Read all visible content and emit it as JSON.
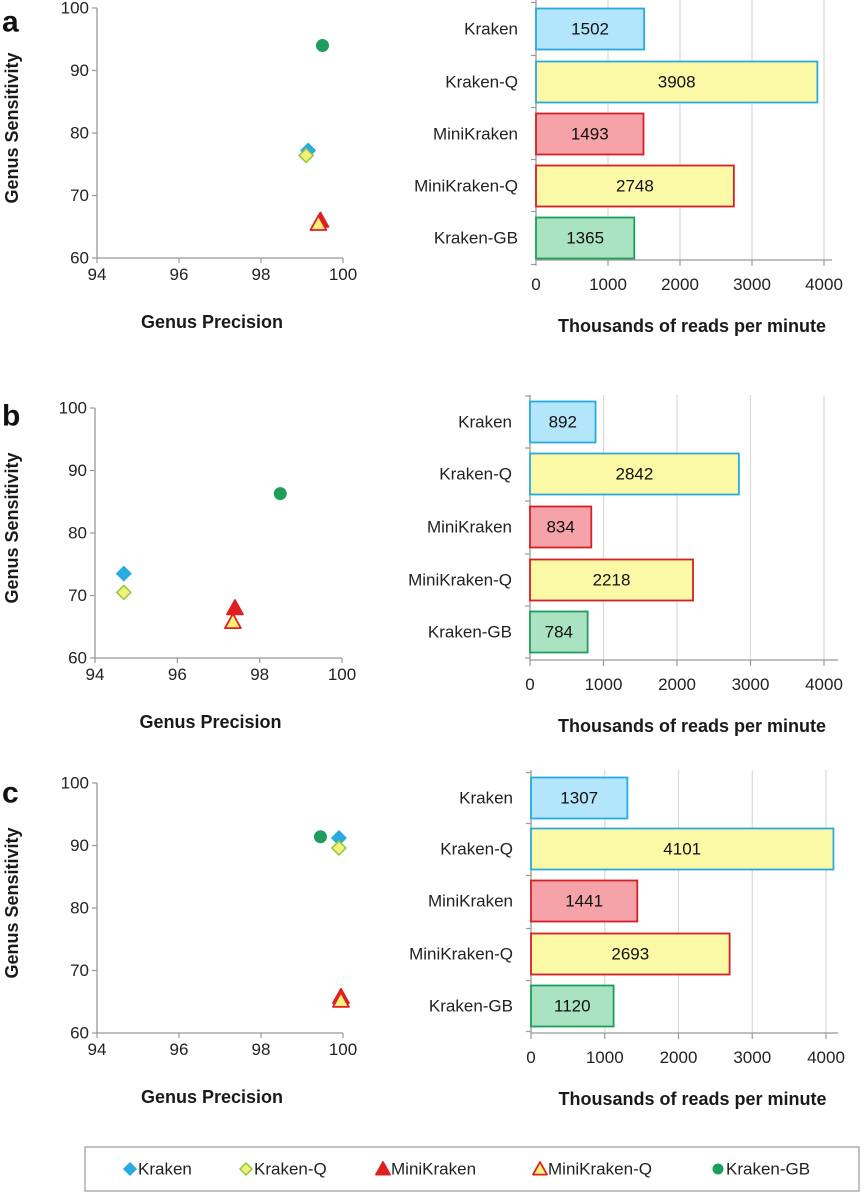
{
  "panels": [
    {
      "letter": "a",
      "scatter": {
        "xlabel": "Genus Precision",
        "ylabel": "Genus Sensitivity",
        "xlim": [
          94,
          100
        ],
        "ylim": [
          60,
          100
        ],
        "xticks": [
          94,
          96,
          98,
          100
        ],
        "yticks": [
          60,
          70,
          80,
          90,
          100
        ]
      },
      "bar": {
        "xlabel": "Thousands  of reads per minute",
        "xlim": [
          0,
          4000
        ],
        "xticks": [
          0,
          1000,
          2000,
          3000,
          4000
        ]
      }
    },
    {
      "letter": "b",
      "scatter": {
        "xlabel": "Genus Precision",
        "ylabel": "Genus Sensitivity",
        "xlim": [
          94,
          100
        ],
        "ylim": [
          60,
          100
        ],
        "xticks": [
          94,
          96,
          98,
          100
        ],
        "yticks": [
          60,
          70,
          80,
          90,
          100
        ]
      },
      "bar": {
        "xlabel": "Thousands  of reads per minute",
        "xlim": [
          0,
          4000
        ],
        "xticks": [
          0,
          1000,
          2000,
          3000,
          4000
        ]
      }
    },
    {
      "letter": "c",
      "scatter": {
        "xlabel": "Genus Precision",
        "ylabel": "Genus Sensitivity",
        "xlim": [
          94,
          100
        ],
        "ylim": [
          60,
          100
        ],
        "xticks": [
          94,
          96,
          98,
          100
        ],
        "yticks": [
          60,
          70,
          80,
          90,
          100
        ]
      },
      "bar": {
        "xlabel": "Thousands  of reads per minute",
        "xlim": [
          0,
          4000
        ],
        "xticks": [
          0,
          1000,
          2000,
          3000,
          4000
        ]
      }
    }
  ],
  "legend": [
    {
      "label": "Kraken",
      "marker": "diamond",
      "fill": "#29abe2",
      "stroke": "#29abe2"
    },
    {
      "label": "Kraken-Q",
      "marker": "diamond",
      "fill": "#f5f07a",
      "stroke": "#8dc63f"
    },
    {
      "label": "MiniKraken",
      "marker": "triangle",
      "fill": "#e02020",
      "stroke": "#e02020"
    },
    {
      "label": "MiniKraken-Q",
      "marker": "triangle",
      "fill": "#f5f07a",
      "stroke": "#e02020"
    },
    {
      "label": "Kraken-GB",
      "marker": "circle",
      "fill": "#1e9e5a",
      "stroke": "#1e9e5a"
    }
  ],
  "colors": {
    "Kraken": {
      "fill": "#b3e5fb",
      "stroke": "#29abe2"
    },
    "Kraken-Q": {
      "fill": "#fbf8a6",
      "stroke": "#29abe2"
    },
    "MiniKraken": {
      "fill": "#f5a3a8",
      "stroke": "#d42027"
    },
    "MiniKraken-Q": {
      "fill": "#fbf8a6",
      "stroke": "#d42027"
    },
    "Kraken-GB": {
      "fill": "#a9e3c2",
      "stroke": "#1e9e5a"
    }
  },
  "chart_data": [
    {
      "panel": "a",
      "type": "scatter",
      "xlabel": "Genus Precision",
      "ylabel": "Genus Sensitivity",
      "xlim": [
        94,
        100
      ],
      "ylim": [
        60,
        100
      ],
      "grid": false,
      "series": [
        {
          "name": "Kraken",
          "x": [
            99.15
          ],
          "y": [
            77.2
          ]
        },
        {
          "name": "Kraken-Q",
          "x": [
            99.1
          ],
          "y": [
            76.4
          ]
        },
        {
          "name": "MiniKraken",
          "x": [
            99.45
          ],
          "y": [
            66.0
          ]
        },
        {
          "name": "MiniKraken-Q",
          "x": [
            99.4
          ],
          "y": [
            65.5
          ]
        },
        {
          "name": "Kraken-GB",
          "x": [
            99.5
          ],
          "y": [
            94.0
          ]
        }
      ]
    },
    {
      "panel": "a",
      "type": "bar",
      "orientation": "horizontal",
      "categories": [
        "Kraken",
        "Kraken-Q",
        "MiniKraken",
        "MiniKraken-Q",
        "Kraken-GB"
      ],
      "values": [
        1502,
        3908,
        1493,
        2748,
        1365
      ],
      "xlabel": "Thousands  of reads per minute",
      "xlim": [
        0,
        4000
      ],
      "grid": true
    },
    {
      "panel": "b",
      "type": "scatter",
      "xlabel": "Genus Precision",
      "ylabel": "Genus Sensitivity",
      "xlim": [
        94,
        100
      ],
      "ylim": [
        60,
        100
      ],
      "grid": false,
      "series": [
        {
          "name": "Kraken",
          "x": [
            94.7
          ],
          "y": [
            73.5
          ]
        },
        {
          "name": "Kraken-Q",
          "x": [
            94.7
          ],
          "y": [
            70.5
          ]
        },
        {
          "name": "MiniKraken",
          "x": [
            97.4
          ],
          "y": [
            68.0
          ]
        },
        {
          "name": "MiniKraken-Q",
          "x": [
            97.35
          ],
          "y": [
            65.8
          ]
        },
        {
          "name": "Kraken-GB",
          "x": [
            98.5
          ],
          "y": [
            86.3
          ]
        }
      ]
    },
    {
      "panel": "b",
      "type": "bar",
      "orientation": "horizontal",
      "categories": [
        "Kraken",
        "Kraken-Q",
        "MiniKraken",
        "MiniKraken-Q",
        "Kraken-GB"
      ],
      "values": [
        892,
        2842,
        834,
        2218,
        784
      ],
      "xlabel": "Thousands  of reads per minute",
      "xlim": [
        0,
        4000
      ],
      "grid": true
    },
    {
      "panel": "c",
      "type": "scatter",
      "xlabel": "Genus Precision",
      "ylabel": "Genus Sensitivity",
      "xlim": [
        94,
        100
      ],
      "ylim": [
        60,
        100
      ],
      "grid": false,
      "series": [
        {
          "name": "Kraken",
          "x": [
            99.9
          ],
          "y": [
            91.2
          ]
        },
        {
          "name": "Kraken-Q",
          "x": [
            99.9
          ],
          "y": [
            89.6
          ]
        },
        {
          "name": "MiniKraken",
          "x": [
            99.95
          ],
          "y": [
            65.8
          ]
        },
        {
          "name": "MiniKraken-Q",
          "x": [
            99.95
          ],
          "y": [
            65.2
          ]
        },
        {
          "name": "Kraken-GB",
          "x": [
            99.45
          ],
          "y": [
            91.4
          ]
        }
      ]
    },
    {
      "panel": "c",
      "type": "bar",
      "orientation": "horizontal",
      "categories": [
        "Kraken",
        "Kraken-Q",
        "MiniKraken",
        "MiniKraken-Q",
        "Kraken-GB"
      ],
      "values": [
        1307,
        4101,
        1441,
        2693,
        1120
      ],
      "xlabel": "Thousands  of reads per minute",
      "xlim": [
        0,
        4000
      ],
      "grid": true
    }
  ]
}
